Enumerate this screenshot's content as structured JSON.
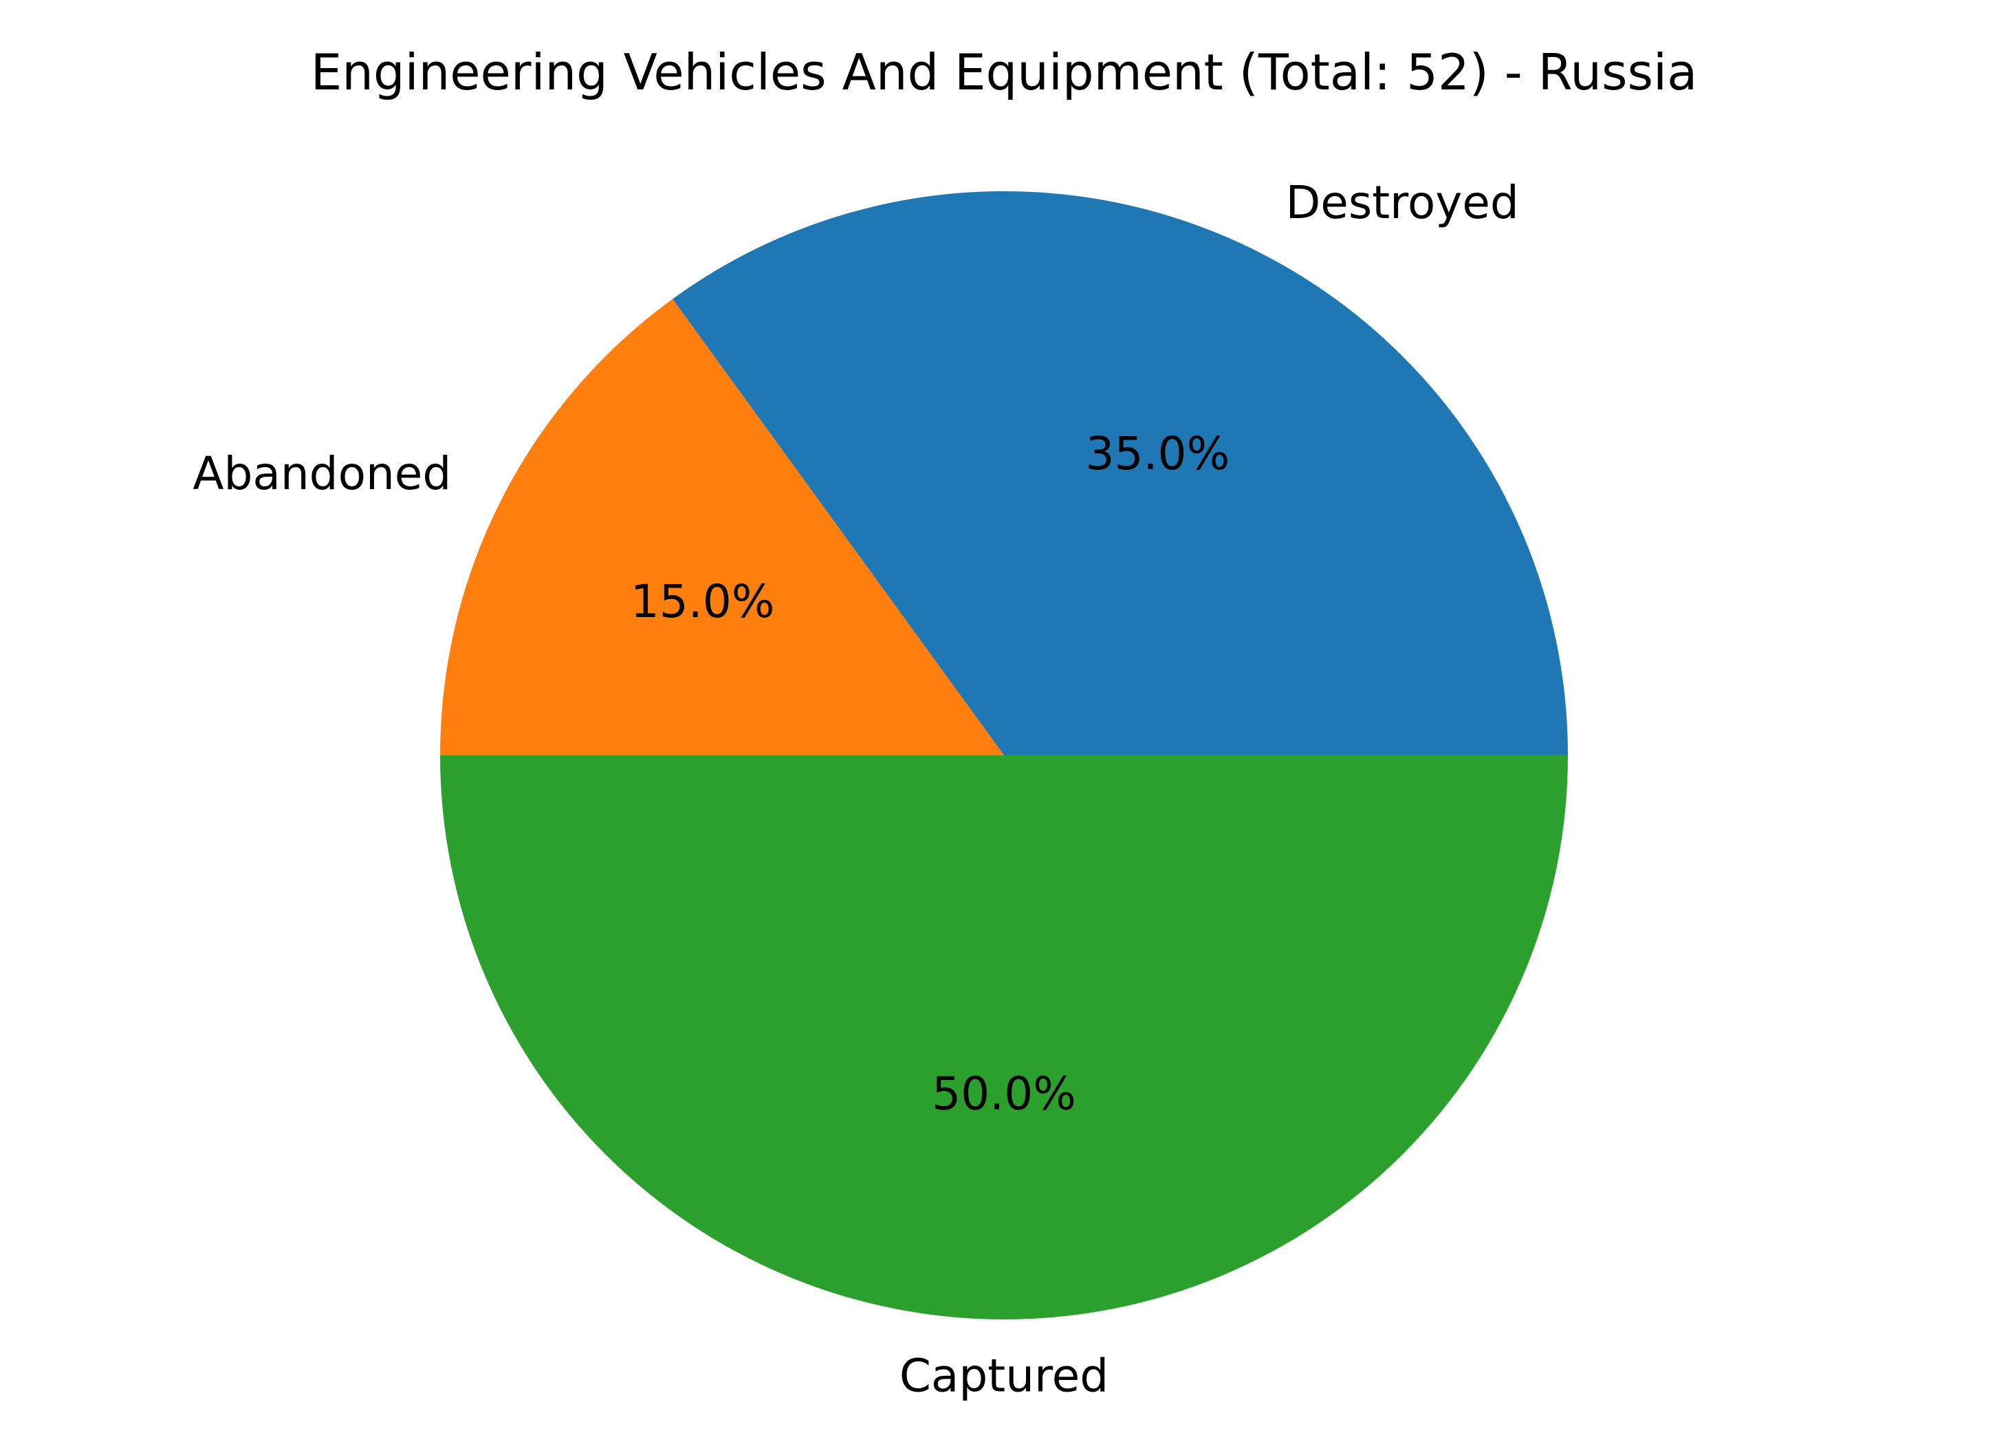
{
  "chart_data": {
    "type": "pie",
    "title": "Engineering Vehicles And Equipment (Total: 52) - Russia",
    "start_angle_deg": 0,
    "direction": "counterclockwise",
    "slices": [
      {
        "label": "Destroyed",
        "percent": 35.0,
        "percent_label": "35.0%",
        "color": "#1f77b4"
      },
      {
        "label": "Abandoned",
        "percent": 15.0,
        "percent_label": "15.0%",
        "color": "#ff7f0e"
      },
      {
        "label": "Captured",
        "percent": 50.0,
        "percent_label": "50.0%",
        "color": "#2ca02c"
      }
    ]
  }
}
